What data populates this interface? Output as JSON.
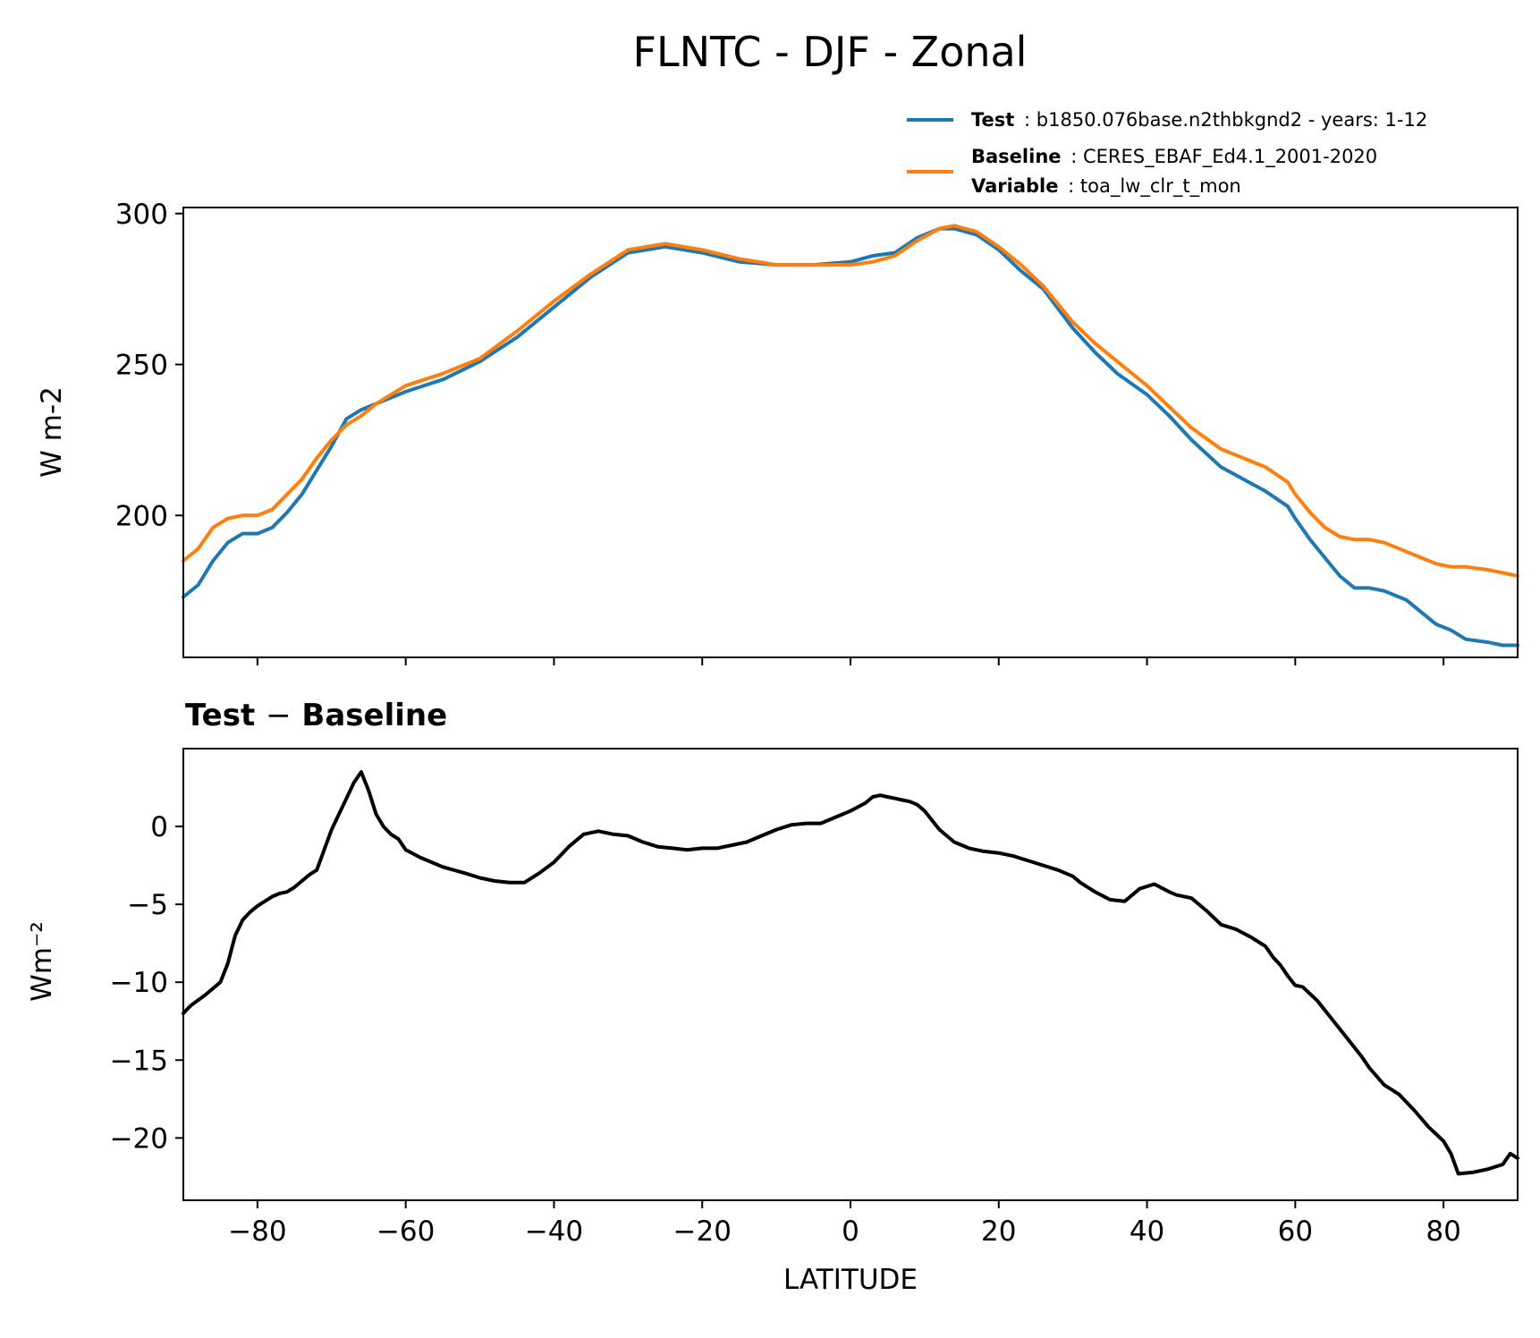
{
  "figure": {
    "title": "FLNTC - DJF - Zonal"
  },
  "legend": {
    "test_key": "Test",
    "test_value": ": b1850.076base.n2thbkgnd2 - years: 1-12",
    "baseline_key": "Baseline",
    "baseline_value": ": CERES_EBAF_Ed4.1_2001-2020",
    "variable_key": "Variable",
    "variable_value": ": toa_lw_clr_t_mon"
  },
  "diff_title": {
    "left": "Test",
    "op": "−",
    "right": "Baseline"
  },
  "colors": {
    "test": "#1f77b4",
    "baseline": "#ff7f0e",
    "diff": "#000000"
  },
  "chart_data": [
    {
      "type": "line",
      "title": "",
      "ylabel": "W m-2",
      "xlim": [
        -90,
        90
      ],
      "ylim": [
        153,
        302
      ],
      "yticks": [
        200,
        250,
        300
      ],
      "xticks": [
        -80,
        -60,
        -40,
        -20,
        0,
        20,
        40,
        60,
        80
      ],
      "legend_position": "above-right",
      "x": [
        -90,
        -88,
        -86,
        -84,
        -82,
        -80,
        -78,
        -76,
        -74,
        -72,
        -70,
        -68,
        -66,
        -64,
        -62,
        -60,
        -55,
        -50,
        -45,
        -40,
        -35,
        -30,
        -25,
        -20,
        -15,
        -10,
        -5,
        0,
        3,
        6,
        9,
        12,
        14,
        17,
        20,
        23,
        26,
        30,
        33,
        36,
        40,
        43,
        46,
        50,
        53,
        56,
        59,
        60,
        62,
        64,
        66,
        68,
        70,
        72,
        75,
        77,
        79,
        81,
        83,
        86,
        88,
        90
      ],
      "series": [
        {
          "name": "Test",
          "color": "#1f77b4",
          "values": [
            173,
            177,
            185,
            191,
            194,
            194,
            196,
            201,
            207,
            215,
            223,
            232,
            235,
            237,
            239,
            241,
            245,
            251,
            259,
            269,
            279,
            287,
            289,
            287,
            284,
            283,
            283,
            284,
            286,
            287,
            292,
            295,
            295,
            293,
            288,
            281,
            275,
            262,
            254,
            247,
            240,
            233,
            225,
            216,
            212,
            208,
            203,
            199,
            192,
            186,
            180,
            176,
            176,
            175,
            172,
            168,
            164,
            162,
            159,
            158,
            157,
            157
          ]
        },
        {
          "name": "Baseline",
          "color": "#ff7f0e",
          "values": [
            185,
            189,
            196,
            199,
            200,
            200,
            202,
            207,
            212,
            219,
            225,
            230,
            233,
            237,
            240,
            243,
            247,
            252,
            261,
            271,
            280,
            288,
            290,
            288,
            285,
            283,
            283,
            283,
            284,
            286,
            291,
            295,
            296,
            294,
            289,
            283,
            276,
            264,
            257,
            251,
            243,
            236,
            229,
            222,
            219,
            216,
            211,
            207,
            201,
            196,
            193,
            192,
            192,
            191,
            188,
            186,
            184,
            183,
            183,
            182,
            181,
            180
          ]
        }
      ]
    },
    {
      "type": "line",
      "title": "Test − Baseline",
      "xlabel": "LATITUDE",
      "ylabel": "Wm⁻²",
      "xlim": [
        -90,
        90
      ],
      "ylim": [
        -24,
        5
      ],
      "yticks": [
        -20,
        -15,
        -10,
        -5,
        0
      ],
      "xticks": [
        -80,
        -60,
        -40,
        -20,
        0,
        20,
        40,
        60,
        80
      ],
      "x": [
        -90,
        -89,
        -87,
        -85,
        -84,
        -83,
        -82,
        -81,
        -80,
        -79,
        -78,
        -77,
        -76,
        -75,
        -74,
        -73,
        -72,
        -71,
        -70,
        -69,
        -68,
        -67,
        -66,
        -65,
        -64,
        -63,
        -62,
        -61,
        -60,
        -58,
        -55,
        -52,
        -50,
        -48,
        -46,
        -44,
        -42,
        -40,
        -38,
        -36,
        -34,
        -32,
        -30,
        -28,
        -26,
        -24,
        -22,
        -20,
        -18,
        -16,
        -14,
        -12,
        -10,
        -8,
        -6,
        -4,
        -2,
        0,
        2,
        3,
        4,
        5,
        6,
        7,
        8,
        9,
        10,
        12,
        14,
        16,
        18,
        20,
        22,
        24,
        26,
        28,
        29,
        30,
        31,
        33,
        35,
        37,
        39,
        41,
        43,
        44,
        46,
        48,
        50,
        52,
        54,
        56,
        57,
        58,
        59,
        60,
        61,
        63,
        65,
        67,
        69,
        70,
        72,
        74,
        76,
        78,
        80,
        81,
        82,
        84,
        86,
        88,
        89,
        90
      ],
      "series": [
        {
          "name": "",
          "color": "#000000",
          "values": [
            -12,
            -11.5,
            -10.8,
            -10,
            -8.8,
            -7,
            -6,
            -5.5,
            -5.1,
            -4.8,
            -4.5,
            -4.3,
            -4.2,
            -3.9,
            -3.5,
            -3.1,
            -2.8,
            -1.5,
            -0.2,
            0.8,
            1.8,
            2.8,
            3.5,
            2.3,
            0.8,
            0,
            -0.5,
            -0.8,
            -1.5,
            -2,
            -2.6,
            -3,
            -3.3,
            -3.5,
            -3.6,
            -3.6,
            -3,
            -2.3,
            -1.3,
            -0.5,
            -0.3,
            -0.5,
            -0.6,
            -1,
            -1.3,
            -1.4,
            -1.5,
            -1.4,
            -1.4,
            -1.2,
            -1,
            -0.6,
            -0.2,
            0.1,
            0.2,
            0.2,
            0.6,
            1,
            1.5,
            1.9,
            2,
            1.9,
            1.8,
            1.7,
            1.6,
            1.4,
            1,
            -0.2,
            -1,
            -1.4,
            -1.6,
            -1.7,
            -1.9,
            -2.2,
            -2.5,
            -2.8,
            -3,
            -3.2,
            -3.6,
            -4.2,
            -4.7,
            -4.8,
            -4,
            -3.7,
            -4.2,
            -4.4,
            -4.6,
            -5.4,
            -6.3,
            -6.6,
            -7.1,
            -7.7,
            -8.4,
            -8.9,
            -9.6,
            -10.2,
            -10.3,
            -11.2,
            -12.4,
            -13.6,
            -14.8,
            -15.5,
            -16.6,
            -17.2,
            -18.2,
            -19.3,
            -20.2,
            -21,
            -22.3,
            -22.2,
            -22,
            -21.7,
            -21,
            -21.3
          ]
        }
      ]
    }
  ]
}
